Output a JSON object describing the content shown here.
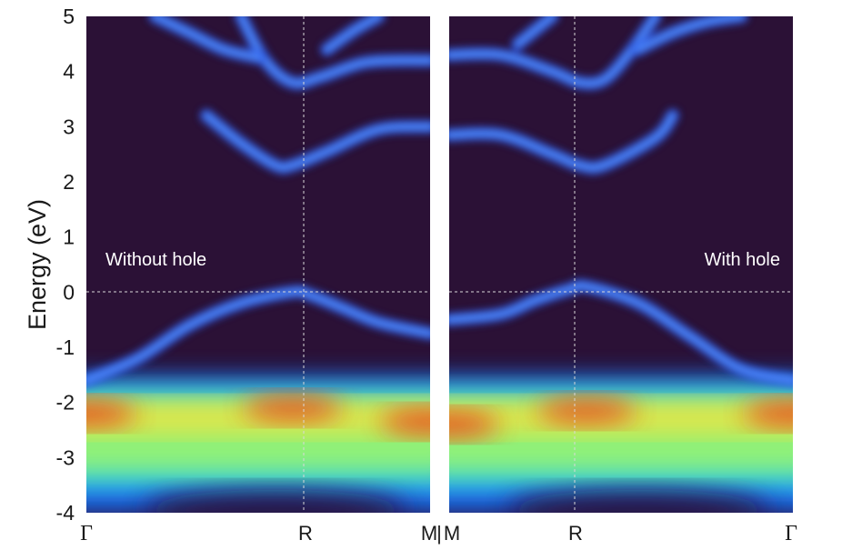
{
  "chart_data": {
    "type": "heatmap",
    "ylabel": "Energy (eV)",
    "ylim": [
      -4,
      5
    ],
    "yticks": [
      "5",
      "4",
      "3",
      "2",
      "1",
      "0",
      "-1",
      "-2",
      "-3",
      "-4"
    ],
    "fermi_level": 0,
    "colormap": "jet",
    "background_color": "#2b1136",
    "panels": [
      {
        "annotation": "Without hole",
        "annotation_position": "left",
        "kpath": [
          "Γ",
          "R",
          "M"
        ],
        "bands": [
          {
            "x": [
              0,
              0.15,
              0.3,
              0.45,
              0.6,
              0.65,
              0.75,
              0.85,
              1.0
            ],
            "y": [
              -1.6,
              -1.2,
              -0.6,
              -0.2,
              0.0,
              -0.05,
              -0.3,
              -0.55,
              -0.75
            ]
          },
          {
            "x": [
              0.35,
              0.45,
              0.55,
              0.6,
              0.7,
              0.85,
              1.0
            ],
            "y": [
              3.2,
              2.7,
              2.3,
              2.3,
              2.55,
              2.95,
              3.0
            ]
          },
          {
            "x": [
              0.45,
              0.52,
              0.6,
              0.68,
              0.8,
              0.9,
              1.0
            ],
            "y": [
              5.0,
              4.2,
              3.8,
              3.9,
              4.15,
              4.2,
              4.2
            ]
          },
          {
            "x": [
              0.2,
              0.3,
              0.4,
              0.5
            ],
            "y": [
              5.0,
              4.7,
              4.4,
              4.25
            ]
          },
          {
            "x": [
              0.7,
              0.78,
              0.85
            ],
            "y": [
              4.4,
              4.75,
              5.0
            ]
          }
        ],
        "valence_intensity": [
          {
            "x": 0.0,
            "y": -2.2,
            "level": 0.95
          },
          {
            "x": 0.6,
            "y": -2.1,
            "level": 0.9
          },
          {
            "x": 1.0,
            "y": -2.35,
            "level": 0.95
          }
        ]
      },
      {
        "annotation": "With hole",
        "annotation_position": "right",
        "kpath": [
          "M",
          "R",
          "Γ"
        ],
        "bands": [
          {
            "x": [
              0,
              0.15,
              0.25,
              0.35,
              0.4,
              0.55,
              0.7,
              0.85,
              1.0
            ],
            "y": [
              -0.5,
              -0.4,
              -0.15,
              0.05,
              0.1,
              -0.2,
              -0.8,
              -1.4,
              -1.6
            ]
          },
          {
            "x": [
              0,
              0.15,
              0.3,
              0.38,
              0.45,
              0.6,
              0.65
            ],
            "y": [
              2.85,
              2.85,
              2.5,
              2.3,
              2.3,
              2.8,
              3.2
            ]
          },
          {
            "x": [
              0,
              0.15,
              0.3,
              0.38,
              0.45,
              0.52,
              0.6
            ],
            "y": [
              4.3,
              4.3,
              4.0,
              3.8,
              3.85,
              4.3,
              5.0
            ]
          },
          {
            "x": [
              0.55,
              0.65,
              0.75,
              0.85
            ],
            "y": [
              4.4,
              4.7,
              4.9,
              5.0
            ]
          },
          {
            "x": [
              0.2,
              0.25,
              0.3
            ],
            "y": [
              4.5,
              4.75,
              5.0
            ]
          }
        ],
        "valence_intensity": [
          {
            "x": 0.0,
            "y": -2.4,
            "level": 0.95
          },
          {
            "x": 0.4,
            "y": -2.15,
            "level": 0.9
          },
          {
            "x": 1.0,
            "y": -2.2,
            "level": 0.95
          }
        ]
      }
    ]
  }
}
